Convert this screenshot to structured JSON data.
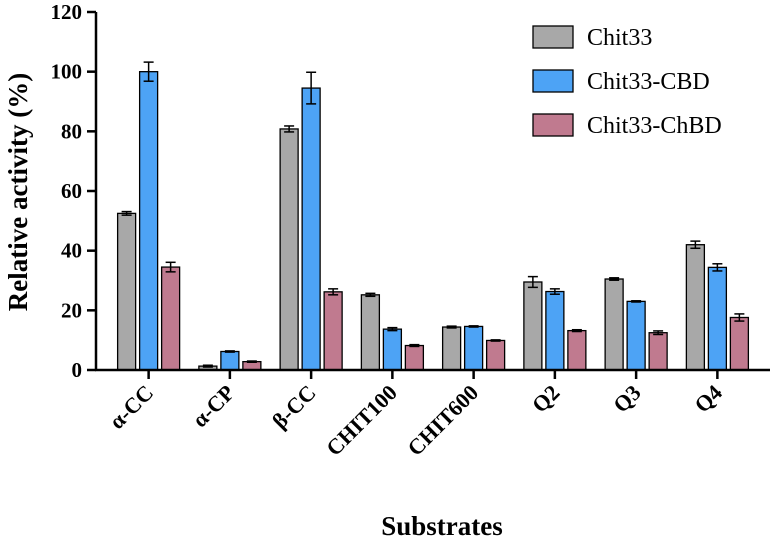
{
  "chart_data": {
    "type": "bar",
    "xlabel": "Substrates",
    "ylabel": "Relative activity (%)",
    "ylim": [
      0,
      120
    ],
    "yticks": [
      0,
      20,
      40,
      60,
      80,
      100,
      120
    ],
    "categories": [
      "α-CC",
      "α-CP",
      "β-CC",
      "CHIT100",
      "CHIT600",
      "Q2",
      "Q3",
      "Q4"
    ],
    "legend_position": "top-right",
    "grid": false,
    "series": [
      {
        "name": "Chit33",
        "color": "#a8a8a8",
        "values": [
          52.5,
          1.3,
          80.8,
          25.2,
          14.4,
          29.5,
          30.5,
          42.0
        ],
        "errors": [
          0.6,
          0.3,
          1.0,
          0.5,
          0.3,
          1.8,
          0.4,
          1.2
        ]
      },
      {
        "name": "Chit33-CBD",
        "color": "#4da3f5",
        "values": [
          100.0,
          6.2,
          94.5,
          13.7,
          14.6,
          26.3,
          23.0,
          34.4
        ],
        "errors": [
          3.2,
          0.2,
          5.3,
          0.5,
          0.2,
          0.9,
          0.2,
          1.2
        ]
      },
      {
        "name": "Chit33-ChBD",
        "color": "#c07a8f",
        "values": [
          34.5,
          2.8,
          26.2,
          8.2,
          9.9,
          13.2,
          12.5,
          17.6
        ],
        "errors": [
          1.6,
          0.2,
          1.0,
          0.3,
          0.2,
          0.3,
          0.6,
          1.2
        ]
      }
    ]
  }
}
